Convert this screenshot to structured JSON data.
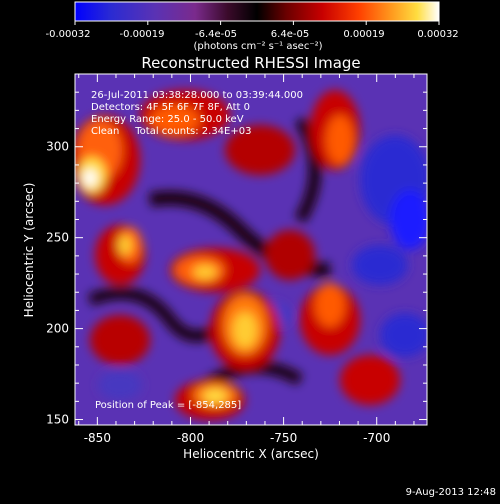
{
  "chart_data": {
    "type": "heatmap",
    "title": "Reconstructed RHESSI Image",
    "xlabel": "Heliocentric X (arcsec)",
    "ylabel": "Heliocentric Y (arcsec)",
    "xlim": [
      -862,
      -673
    ],
    "ylim": [
      147,
      340
    ],
    "xticks": [
      -850,
      -800,
      -750,
      -700
    ],
    "yticks": [
      150,
      200,
      250,
      300
    ],
    "colorbar": {
      "range": [
        -0.00032,
        0.00032
      ],
      "ticks": [
        "-0.00032",
        "-0.00019",
        "-6.4e-05",
        "6.4e-05",
        "0.00019",
        "0.00032"
      ],
      "unit_label": "(photons cm⁻² s⁻¹ asec⁻²)",
      "colors": [
        "#0000ff",
        "#2b2bd2",
        "#5a32b4",
        "#7a2a8c",
        "#3a0a2a",
        "#000000",
        "#6a0000",
        "#c80000",
        "#ff4000",
        "#ff9a1e",
        "#ffdd40",
        "#ffffff"
      ]
    },
    "annotations": {
      "time": "26-Jul-2011 03:38:28.000 to 03:39:44.000",
      "detectors": "Detectors: 4F 5F 6F 7F 8F, Att 0",
      "energy": "Energy Range: 25.0 - 50.0 keV",
      "clean": "Clean     Total counts: 2.34E+03",
      "peak": "Position of Peak = [-854,285]"
    },
    "footer_date": "9-Aug-2013 12:48"
  }
}
